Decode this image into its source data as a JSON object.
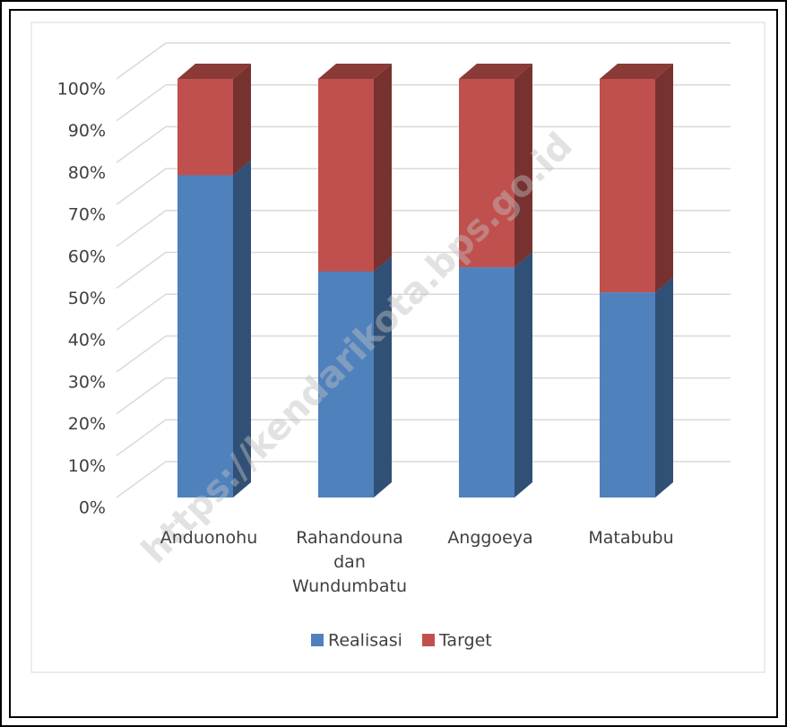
{
  "chart_data": {
    "type": "bar3d_stacked",
    "categories": [
      "Anduonohu",
      "Rahandouna dan Wundumbatu",
      "Anggoeya",
      "Matabubu"
    ],
    "series": [
      {
        "name": "Realisasi",
        "color": "#4f81bd",
        "values": [
          77,
          54,
          55,
          49
        ]
      },
      {
        "name": "Target",
        "color": "#c0504d",
        "values": [
          23,
          46,
          45,
          51
        ]
      }
    ],
    "ylim": [
      0,
      100
    ],
    "yticks": [
      {
        "value": 0,
        "label": "0%"
      },
      {
        "value": 10,
        "label": "10%"
      },
      {
        "value": 20,
        "label": "20%"
      },
      {
        "value": 30,
        "label": "30%"
      },
      {
        "value": 40,
        "label": "40%"
      },
      {
        "value": 50,
        "label": "50%"
      },
      {
        "value": 60,
        "label": "60%"
      },
      {
        "value": 70,
        "label": "70%"
      },
      {
        "value": 80,
        "label": "80%"
      },
      {
        "value": 90,
        "label": "90%"
      },
      {
        "value": 100,
        "label": "100%"
      }
    ],
    "grid": true,
    "legend": "bottom",
    "watermark": "https://kendarikota.bps.go.id"
  }
}
